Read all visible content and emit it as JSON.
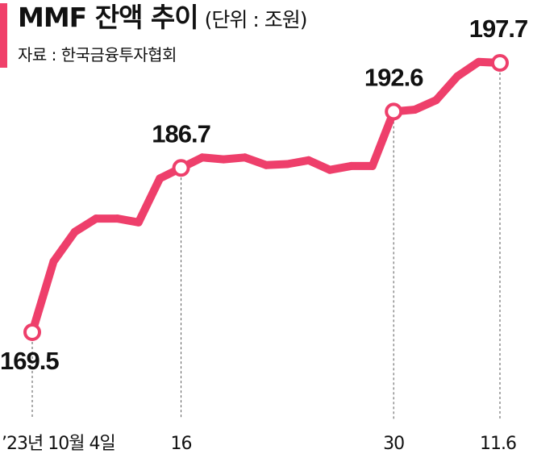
{
  "header": {
    "title": "MMF 잔액 추이",
    "unit": "(단위 : 조원)",
    "source": "자료 : 한국금융투자협회"
  },
  "colors": {
    "accent": "#f0406a",
    "line": "#ee3f6b",
    "text": "#111111"
  },
  "chart_data": {
    "type": "line",
    "title": "MMF 잔액 추이",
    "unit": "(단위 : 조원)",
    "source": "자료 : 한국금융투자협회",
    "series": [
      {
        "values": [
          169.5,
          176.9,
          180.0,
          181.4,
          181.4,
          181.0,
          185.6,
          186.7,
          187.8,
          187.6,
          187.8,
          187.0,
          187.1,
          187.5,
          186.5,
          186.9,
          186.9,
          192.6,
          192.8,
          193.8,
          196.3,
          197.8,
          197.7
        ]
      }
    ],
    "ylim": [
      169.5,
      197.7
    ],
    "annotations": [
      {
        "index": 0,
        "label": "169.5"
      },
      {
        "index": 7,
        "label": "186.7"
      },
      {
        "index": 17,
        "label": "192.6"
      },
      {
        "index": 22,
        "label": "197.7"
      }
    ],
    "x_ticks": [
      {
        "index": 0,
        "label": "’23년 10월 4일"
      },
      {
        "index": 7,
        "label": "16"
      },
      {
        "index": 17,
        "label": "30"
      },
      {
        "index": 22,
        "label": "11.6"
      }
    ],
    "grid": false,
    "legend": "none"
  }
}
